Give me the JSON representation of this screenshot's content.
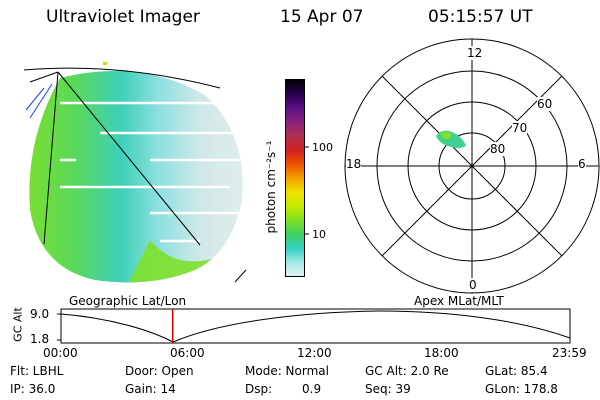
{
  "header": {
    "instrument": "Ultraviolet Imager",
    "date": "15 Apr 07",
    "time": "05:15:57 UT"
  },
  "colorbar": {
    "unit_label": "photon cm⁻²s⁻¹",
    "ticks": [
      "100",
      "10"
    ],
    "colors": [
      "#000000",
      "#2a0050",
      "#5a1080",
      "#8a2080",
      "#b03050",
      "#d02020",
      "#f05000",
      "#f0a000",
      "#f0e000",
      "#c8e800",
      "#80e020",
      "#40d060",
      "#30d0c0",
      "#a0e8e8",
      "#e0f0f0"
    ]
  },
  "polar_plot": {
    "mlt_labels": {
      "top": "12",
      "bottom": "0",
      "left": "18",
      "right": "6"
    },
    "lat_labels": [
      "60",
      "70",
      "80"
    ],
    "title": "Apex MLat/MLT"
  },
  "imager": {
    "title": "Geographic Lat/Lon"
  },
  "timeline": {
    "ylabel": "GC Alt",
    "y_ticks": [
      "9.0",
      "1.8"
    ],
    "x_ticks": [
      "00:00",
      "06:00",
      "12:00",
      "18:00",
      "23:59"
    ],
    "marker_time": "05:15:57"
  },
  "footer": {
    "flt": "Flt: LBHL",
    "ip": "IP: 36.0",
    "door": "Door: Open",
    "gain": "Gain: 14",
    "mode": "Mode: Normal",
    "dsp_label": "Dsp:",
    "dsp_value": "0.9",
    "gc_alt": "GC Alt: 2.0 Re",
    "seq": "Seq: 39",
    "glat": "GLat: 85.4",
    "glon": "GLon: 178.8"
  }
}
